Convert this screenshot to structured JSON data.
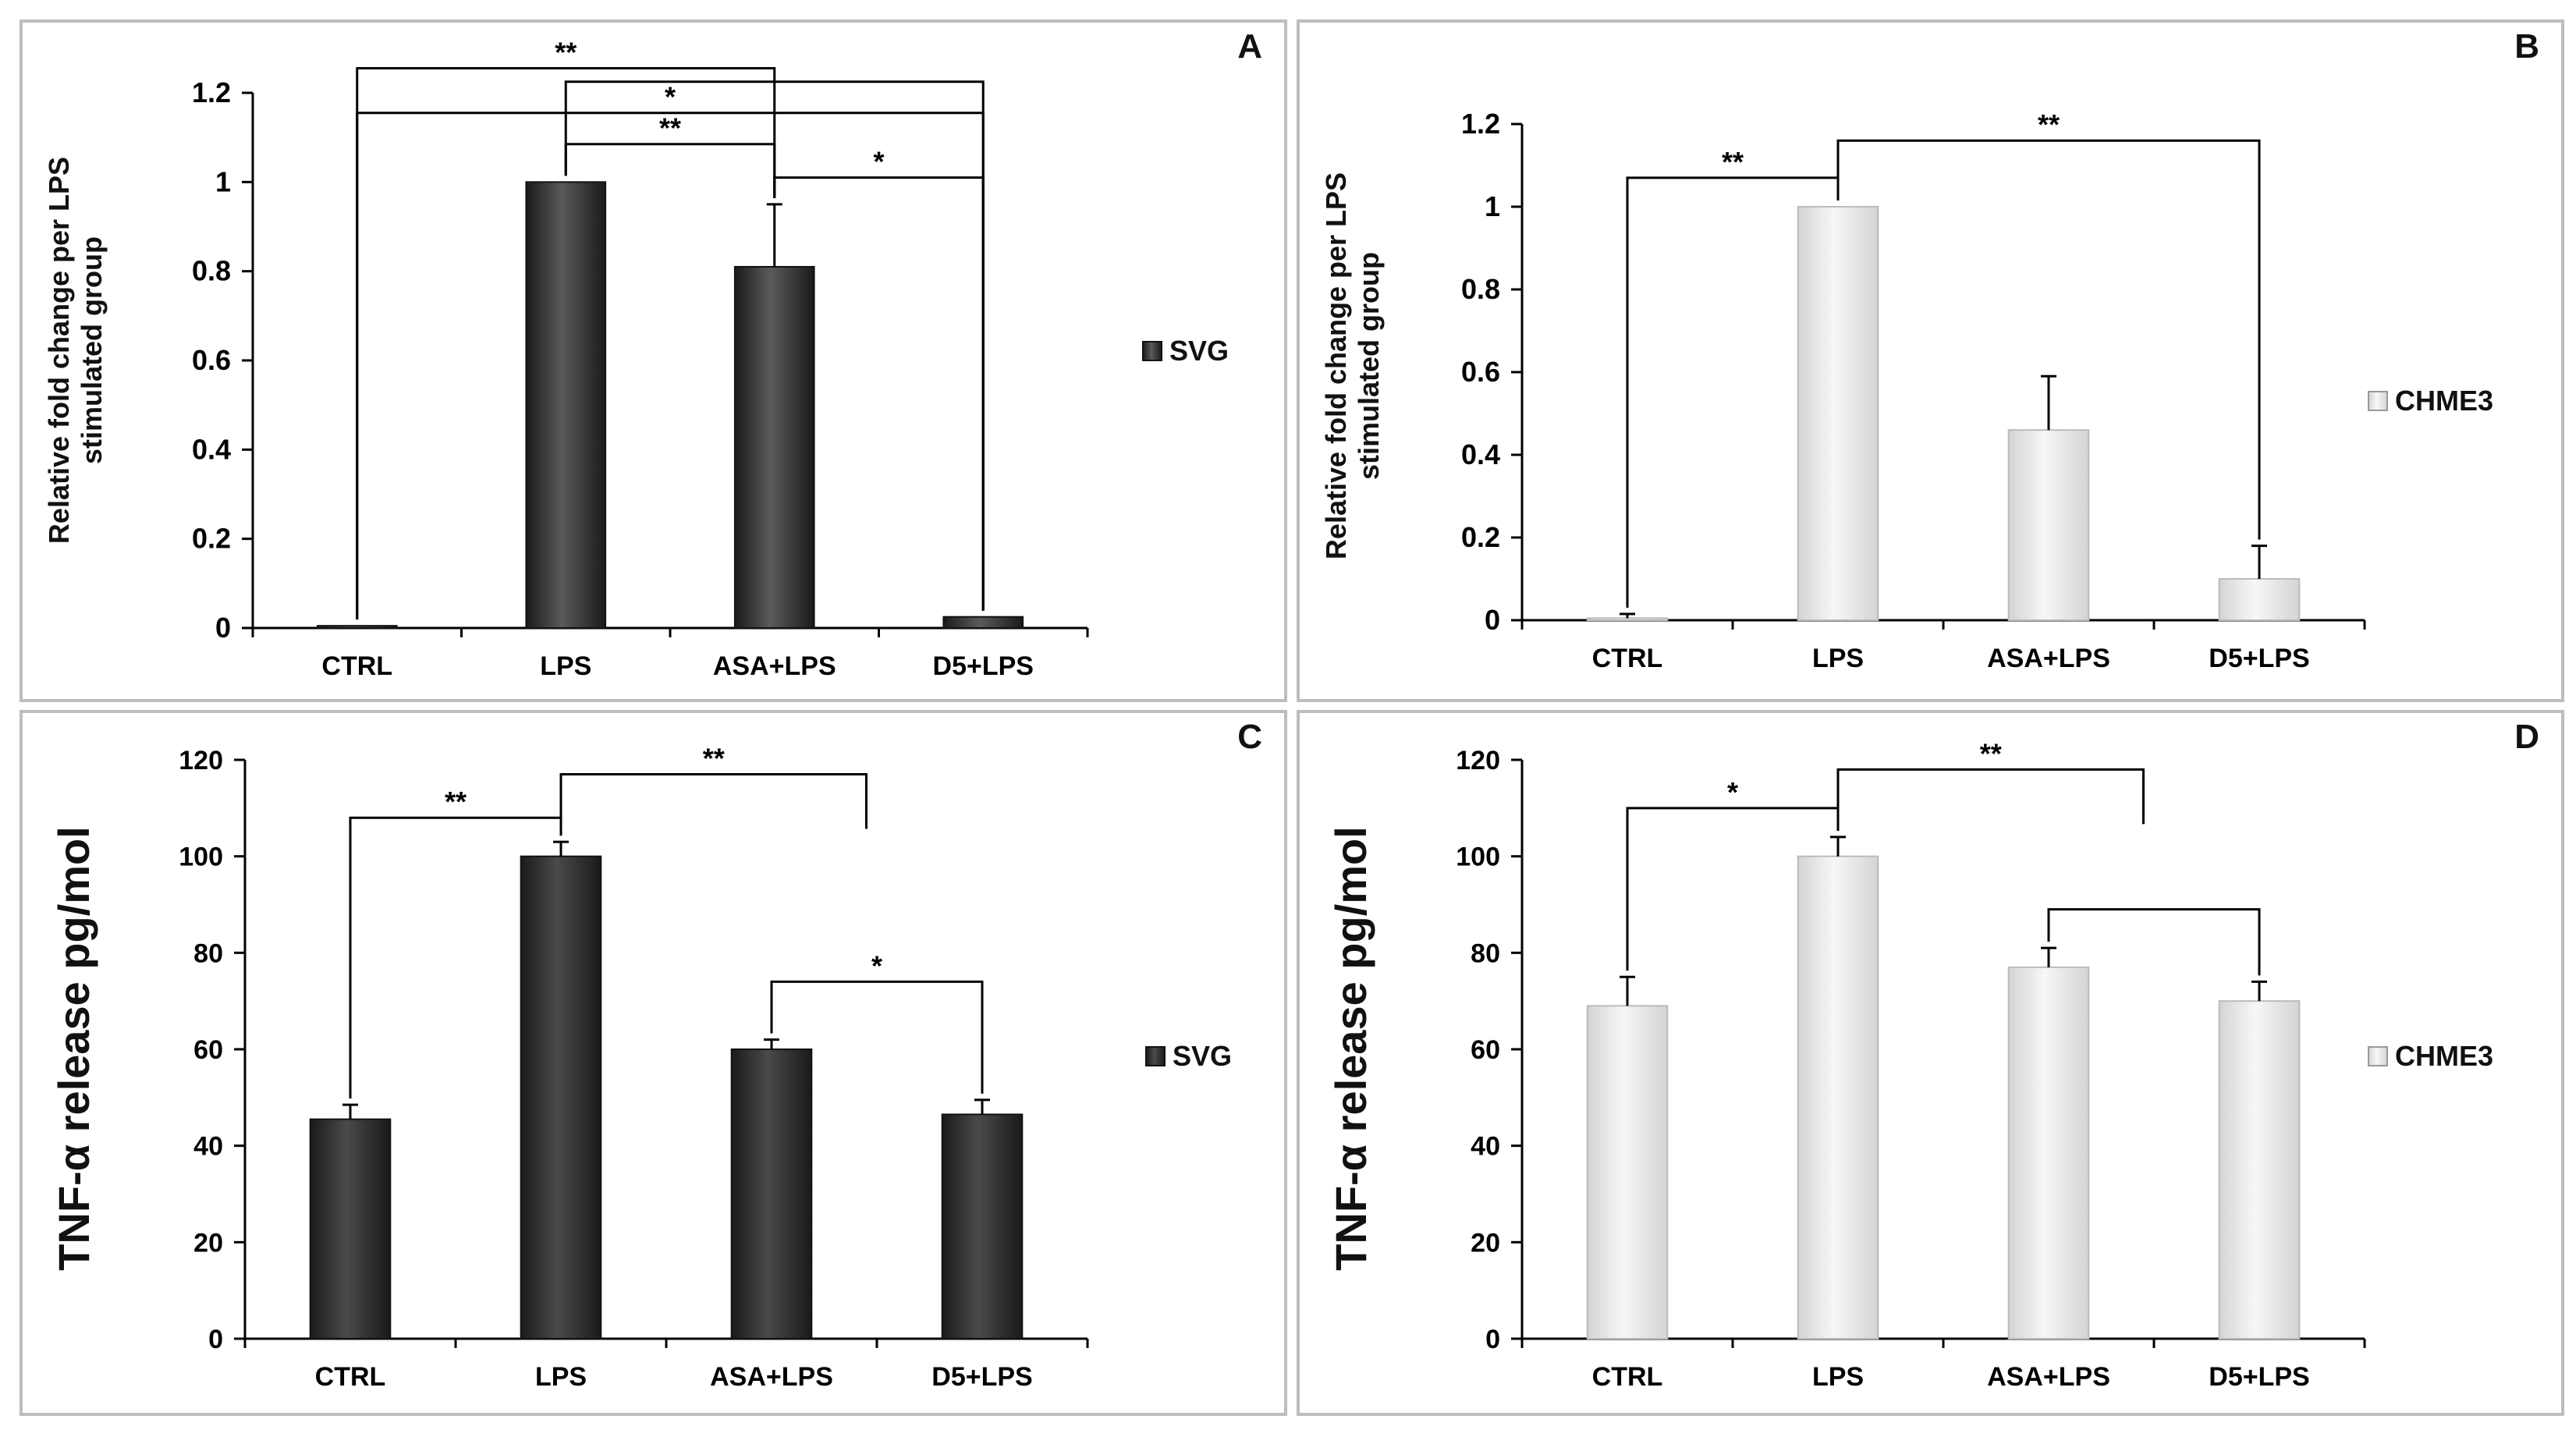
{
  "chart_data": [
    {
      "panel": "A",
      "type": "bar",
      "categories": [
        "CTRL",
        "LPS",
        "ASA+LPS",
        "D5+LPS"
      ],
      "series": [
        {
          "name": "SVG",
          "values": [
            0.005,
            1.0,
            0.81,
            0.025
          ],
          "errors": [
            0.0,
            0.0,
            0.14,
            0.0
          ]
        }
      ],
      "ylabel_lines": [
        "Relative fold change per LPS",
        "stimulated group"
      ],
      "ylim": [
        0,
        1.2
      ],
      "yticks": [
        0,
        0.2,
        0.4,
        0.6,
        0.8,
        1,
        1.2
      ],
      "ytick_labels": [
        "0",
        "0.2",
        "0.4",
        "0.6",
        "0.8",
        "1",
        "1.2"
      ],
      "legend": "SVG",
      "bar_color": "#444444",
      "significance": [
        {
          "from": 0,
          "to": 2,
          "label": "**",
          "level": 1.255
        },
        {
          "from": 0,
          "to": 3,
          "label": "*",
          "level": 1.155
        },
        {
          "from": 1,
          "to": 3,
          "label": "",
          "level": 1.225
        },
        {
          "from": 1,
          "to": 2,
          "label": "**",
          "level": 1.085
        },
        {
          "from": 2,
          "to": 3,
          "label": "*",
          "level": 1.01
        }
      ]
    },
    {
      "panel": "B",
      "type": "bar",
      "categories": [
        "CTRL",
        "LPS",
        "ASA+LPS",
        "D5+LPS"
      ],
      "series": [
        {
          "name": "CHME3",
          "values": [
            0.005,
            1.0,
            0.46,
            0.1
          ],
          "errors": [
            0.01,
            0.0,
            0.13,
            0.08
          ]
        }
      ],
      "ylabel_lines": [
        "Relative fold change per LPS",
        "stimulated group"
      ],
      "ylim": [
        0,
        1.2
      ],
      "yticks": [
        0,
        0.2,
        0.4,
        0.6,
        0.8,
        1,
        1.2
      ],
      "ytick_labels": [
        "0",
        "0.2",
        "0.4",
        "0.6",
        "0.8",
        "1",
        "1.2"
      ],
      "legend": "CHME3",
      "bar_color": "#e6e6e6",
      "significance": [
        {
          "from": 0,
          "to": 1,
          "label": "**",
          "level": 1.07
        },
        {
          "from": 1,
          "to": 3,
          "label": "**",
          "level": 1.16
        }
      ]
    },
    {
      "panel": "C",
      "type": "bar",
      "categories": [
        "CTRL",
        "LPS",
        "ASA+LPS",
        "D5+LPS"
      ],
      "series": [
        {
          "name": "SVG",
          "values": [
            45.5,
            100,
            60,
            46.5
          ],
          "errors": [
            3,
            3,
            2,
            3
          ]
        }
      ],
      "ylabel_lines": [
        "TNF-α release pg/mol"
      ],
      "ylim": [
        0,
        120
      ],
      "yticks": [
        0,
        20,
        40,
        60,
        80,
        100,
        120
      ],
      "ytick_labels": [
        "0",
        "20",
        "40",
        "60",
        "80",
        "100",
        "120"
      ],
      "legend": "SVG",
      "bar_color": "#333333",
      "significance": [
        {
          "from": 0,
          "to": 1,
          "label": "**",
          "level": 108
        },
        {
          "from": 1,
          "to": 2.45,
          "label": "**",
          "level": 117
        },
        {
          "from": 2,
          "to": 3,
          "label": "*",
          "level": 74
        }
      ]
    },
    {
      "panel": "D",
      "type": "bar",
      "categories": [
        "CTRL",
        "LPS",
        "ASA+LPS",
        "D5+LPS"
      ],
      "series": [
        {
          "name": "CHME3",
          "values": [
            69,
            100,
            77,
            70
          ],
          "errors": [
            6,
            4,
            4,
            4
          ]
        }
      ],
      "ylabel_lines": [
        "TNF-α release pg/mol"
      ],
      "ylim": [
        0,
        120
      ],
      "yticks": [
        0,
        20,
        40,
        60,
        80,
        100,
        120
      ],
      "ytick_labels": [
        "0",
        "20",
        "40",
        "60",
        "80",
        "100",
        "120"
      ],
      "legend": "CHME3",
      "bar_color": "#e6e6e6",
      "significance": [
        {
          "from": 0,
          "to": 1,
          "label": "*",
          "level": 110
        },
        {
          "from": 1,
          "to": 2.45,
          "label": "**",
          "level": 118
        },
        {
          "from": 2,
          "to": 3,
          "label": "",
          "level": 89
        }
      ]
    }
  ]
}
